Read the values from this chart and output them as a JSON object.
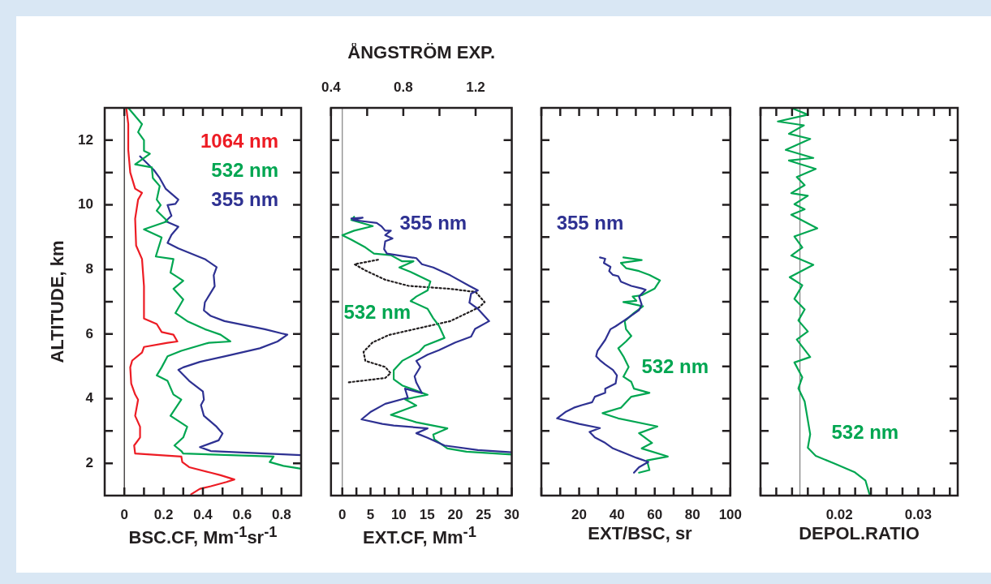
{
  "chart_data": [
    {
      "type": "line",
      "xlabel": "BSC.CF, Mm$^{-1}$sr$^{-1}$",
      "ylabel": "ALTITUDE, km",
      "xlim": [
        -0.1,
        0.9
      ],
      "ylim": [
        1,
        13
      ],
      "marker": "none",
      "legend": "top right",
      "xticks": [
        0,
        {
          "value": 0.1,
          "label": null
        },
        0.2,
        {
          "value": 0.3,
          "label": null
        },
        0.4,
        {
          "value": 0.5,
          "label": null
        },
        0.6,
        {
          "value": 0.7,
          "label": null
        },
        0.8
      ],
      "yticks": [
        2,
        {
          "value": 3,
          "label": null
        },
        4,
        {
          "value": 5,
          "label": null
        },
        6,
        {
          "value": 7,
          "label": null
        },
        8,
        {
          "value": 9,
          "label": null
        },
        10,
        {
          "value": 11,
          "label": null
        },
        12
      ],
      "ref_lines": [
        {
          "axis": "x",
          "value": 0,
          "color": "#231f20"
        }
      ],
      "series": [
        {
          "name": "1064 nm",
          "color": "#ed1c24",
          "x": [
            0.01,
            0.02,
            0.02,
            0.03,
            0.055,
            0.09,
            0.07,
            0.055,
            0.06,
            0.09,
            0.1,
            0.1,
            0.165,
            0.19,
            0.25,
            0.27,
            0.22,
            0.1,
            0.09,
            0.04,
            0.03,
            0.035,
            0.055,
            0.07,
            0.055,
            0.08,
            0.08,
            0.05,
            0.055,
            0.29,
            0.295,
            0.33,
            0.44,
            0.49,
            0.56,
            0.52,
            0.44,
            0.385,
            0.34
          ],
          "values": [
            13,
            12.5,
            11.7,
            11,
            10.5,
            10.37,
            10.16,
            9.57,
            8.74,
            8.32,
            7.48,
            6.48,
            6.31,
            6.06,
            5.98,
            5.77,
            5.73,
            5.6,
            5.43,
            5.18,
            4.97,
            4.47,
            4.13,
            3.97,
            3.47,
            3.13,
            2.8,
            2.55,
            2.3,
            2.21,
            2.04,
            1.88,
            1.71,
            1.63,
            1.5,
            1.42,
            1.29,
            1.21,
            1.04
          ]
        },
        {
          "name": "532 nm",
          "color": "#00a651",
          "x": [
            0.02,
            0.09,
            0.07,
            0.1,
            0.1,
            0.13,
            0.055,
            0.14,
            0.145,
            0.18,
            0.165,
            0.185,
            0.165,
            0.22,
            0.1,
            0.19,
            0.16,
            0.25,
            0.235,
            0.3,
            0.25,
            0.3,
            0.26,
            0.32,
            0.41,
            0.49,
            0.54,
            0.43,
            0.29,
            0.22,
            0.19,
            0.165,
            0.22,
            0.25,
            0.29,
            0.235,
            0.32,
            0.3,
            0.255,
            0.29,
            0.3,
            0.76,
            0.74,
            0.81,
            0.9
          ],
          "values": [
            13,
            12.5,
            12.25,
            12,
            11.67,
            11.58,
            11.25,
            11.16,
            10.83,
            10.58,
            10.16,
            9.99,
            9.82,
            9.49,
            9.24,
            8.99,
            8.4,
            8.32,
            7.9,
            7.65,
            7.4,
            7.07,
            6.65,
            6.4,
            6.15,
            5.98,
            5.77,
            5.73,
            5.48,
            5.31,
            4.97,
            4.72,
            4.55,
            4.13,
            3.97,
            3.47,
            3.13,
            2.8,
            2.55,
            2.38,
            2.3,
            2.21,
            2.04,
            1.92,
            1.83
          ]
        },
        {
          "name": "355 nm",
          "color": "#2e3192",
          "x": [
            0.08,
            0.15,
            0.18,
            0.21,
            0.275,
            0.26,
            0.22,
            0.24,
            0.21,
            0.275,
            0.24,
            0.22,
            0.275,
            0.41,
            0.47,
            0.455,
            0.46,
            0.41,
            0.405,
            0.44,
            0.51,
            0.715,
            0.8,
            0.83,
            0.78,
            0.69,
            0.51,
            0.385,
            0.3,
            0.275,
            0.33,
            0.4,
            0.405,
            0.39,
            0.405,
            0.47,
            0.5,
            0.48,
            0.385,
            0.44,
            0.9
          ],
          "values": [
            11.5,
            11.08,
            10.83,
            10.5,
            10.16,
            10.03,
            9.99,
            9.66,
            9.49,
            9.32,
            9.07,
            8.82,
            8.65,
            8.32,
            8.07,
            7.82,
            7.48,
            6.98,
            6.73,
            6.56,
            6.4,
            6.15,
            6.02,
            5.98,
            5.77,
            5.56,
            5.31,
            5.14,
            4.97,
            4.89,
            4.55,
            4.22,
            3.97,
            3.8,
            3.47,
            3.13,
            2.92,
            2.71,
            2.5,
            2.38,
            2.25
          ]
        }
      ]
    },
    {
      "type": "line",
      "xlabel": "EXT.CF, Mm$^{-1}$",
      "x2label": "ÅNGSTRÖM EXP.",
      "xlim": [
        -2,
        30
      ],
      "ylim": [
        1,
        13
      ],
      "x2lim": [
        0.4,
        1.4
      ],
      "marker": "none",
      "tick_labels": "x",
      "xticks": [
        0,
        {
          "value": 2.5,
          "label": null
        },
        5,
        {
          "value": 7.5,
          "label": null
        },
        10,
        {
          "value": 12.5,
          "label": null
        },
        15,
        {
          "value": 17.5,
          "label": null
        },
        20,
        {
          "value": 22.5,
          "label": null
        },
        25,
        {
          "value": 27.5,
          "label": null
        },
        30
      ],
      "x2ticks": [
        0.4,
        {
          "value": 0.6,
          "label": null
        },
        0.8,
        {
          "value": 1.0,
          "label": null
        },
        1.2
      ],
      "yticks": [
        2,
        3,
        4,
        5,
        6,
        7,
        8,
        9,
        10,
        11,
        12
      ],
      "ref_lines": [
        {
          "axis": "x",
          "value": 0,
          "color": "#808080"
        }
      ],
      "series": [
        {
          "name": "355 nm",
          "color": "#2e3192",
          "x": [
            1.6,
            3.6,
            1.9,
            6.1,
            6.9,
            7.6,
            8.6,
            7.6,
            8.9,
            7.6,
            7.4,
            7.9,
            13.1,
            14.1,
            16.1,
            19.1,
            22.5,
            24,
            22.8,
            22.5,
            24,
            26,
            23.5,
            22.8,
            20,
            17.1,
            15.1,
            13.1,
            13.8,
            12.8,
            13.1,
            14.1,
            11.1,
            11.6,
            7.6,
            5.1,
            3.4,
            7.1,
            9.1,
            15.1,
            13.1,
            15.1,
            18.1,
            24,
            30
          ],
          "values": [
            9.58,
            9.6,
            9.53,
            9.44,
            9.34,
            9.2,
            9.2,
            9.06,
            8.96,
            8.87,
            8.63,
            8.49,
            8.35,
            8.16,
            8.06,
            7.82,
            7.49,
            7.35,
            7.25,
            6.97,
            6.78,
            6.4,
            6.16,
            5.92,
            5.74,
            5.5,
            5.36,
            5.17,
            4.98,
            4.69,
            4.5,
            4.17,
            4.31,
            4.03,
            3.84,
            3.6,
            3.36,
            3.22,
            3.17,
            3.08,
            2.93,
            2.79,
            2.55,
            2.41,
            2.34
          ]
        },
        {
          "name": "532 nm",
          "color": "#00a651",
          "x": [
            2.1,
            1.6,
            5.4,
            2.1,
            0,
            1.6,
            4.1,
            5.6,
            8.6,
            10.6,
            12.6,
            10.1,
            12.1,
            15.6,
            15.1,
            13.1,
            12.1,
            15.1,
            16.1,
            17.1,
            17.6,
            18.1,
            14.6,
            13.6,
            10.6,
            9.1,
            9.1,
            10.6,
            15.1,
            11.1,
            13.1,
            8.6,
            13.1,
            18.6,
            16.1,
            16.3,
            18.6,
            22,
            30
          ],
          "values": [
            9.63,
            9.53,
            9.34,
            9.2,
            9.06,
            8.92,
            8.68,
            8.49,
            8.44,
            8.25,
            8.25,
            8.06,
            7.92,
            7.63,
            7.35,
            7.16,
            7.02,
            6.78,
            6.49,
            6.26,
            6.07,
            5.88,
            5.64,
            5.45,
            5.17,
            4.88,
            4.6,
            4.41,
            4.12,
            3.98,
            3.79,
            3.5,
            3.27,
            3.08,
            2.89,
            2.74,
            2.46,
            2.36,
            2.27
          ]
        },
        {
          "color": "#231f20",
          "axis": "x2",
          "line_style": "dotted",
          "x": [
            0.66,
            0.53,
            0.59,
            0.7,
            0.83,
            1.06,
            1.2,
            1.25,
            1.22,
            1.06,
            0.83,
            0.72,
            0.63,
            0.58,
            0.59,
            0.7,
            0.73,
            0.7,
            0.49
          ],
          "values": [
            8.3,
            8.16,
            7.97,
            7.68,
            7.49,
            7.4,
            7.3,
            6.99,
            6.83,
            6.4,
            6.11,
            5.97,
            5.74,
            5.45,
            5.17,
            4.98,
            4.79,
            4.64,
            4.5
          ]
        }
      ]
    },
    {
      "type": "line",
      "xlabel": "EXT/BSC, sr",
      "xlim": [
        0,
        100
      ],
      "ylim": [
        1,
        13
      ],
      "marker": "none",
      "tick_labels": "x",
      "xticks": [
        {
          "value": 0,
          "label": null
        },
        {
          "value": 10,
          "label": null
        },
        20,
        {
          "value": 30,
          "label": null
        },
        40,
        {
          "value": 50,
          "label": null
        },
        60,
        {
          "value": 70,
          "label": null
        },
        80,
        {
          "value": 90,
          "label": null
        },
        100
      ],
      "yticks": [
        2,
        3,
        4,
        5,
        6,
        7,
        8,
        9,
        10,
        11,
        12
      ],
      "series": [
        {
          "name": "355 nm",
          "color": "#2e3192",
          "x": [
            31,
            33.8,
            33.1,
            36.6,
            35.9,
            37.9,
            40.7,
            42.1,
            47.6,
            53.1,
            55.2,
            51.7,
            53.1,
            51.7,
            47.6,
            43.4,
            39.3,
            36.6,
            33.8,
            29.7,
            29,
            31,
            33.8,
            37.9,
            40,
            39.3,
            33.8,
            33.8,
            28.3,
            26.9,
            21.4,
            17.2,
            13.1,
            8.3,
            20,
            31,
            25.5,
            28.3,
            33.8,
            37.9,
            44.8,
            50.3,
            56.6,
            51.7,
            49
          ],
          "values": [
            8.37,
            8.33,
            8.2,
            8.08,
            7.95,
            7.83,
            7.79,
            7.62,
            7.49,
            7.41,
            7.37,
            7.16,
            6.91,
            6.74,
            6.57,
            6.4,
            6.24,
            6.15,
            5.82,
            5.48,
            5.31,
            5.19,
            5.06,
            4.89,
            4.72,
            4.47,
            4.31,
            4.18,
            4.06,
            3.89,
            3.8,
            3.72,
            3.6,
            3.39,
            3.22,
            3.09,
            2.97,
            2.8,
            2.63,
            2.46,
            2.3,
            2.17,
            2.04,
            1.88,
            1.71
          ]
        },
        {
          "name": "532 nm",
          "color": "#00a651",
          "x": [
            43.4,
            53.1,
            42.1,
            44.8,
            51.7,
            57.2,
            62.8,
            60,
            53.1,
            48.3,
            50.3,
            43.4,
            53.8,
            49,
            44.1,
            44.8,
            47.6,
            44.8,
            40.7,
            43.4,
            46.2,
            43.4,
            47.6,
            49,
            57.2,
            47.6,
            42.1,
            32.4,
            40.7,
            61.4,
            51.7,
            58.6,
            53.1,
            66.9,
            55.9,
            57.2,
            51.7
          ],
          "values": [
            8.37,
            8.29,
            8.2,
            8.04,
            7.95,
            7.83,
            7.66,
            7.41,
            7.2,
            7.16,
            7.03,
            6.99,
            6.86,
            6.65,
            6.4,
            6.15,
            5.94,
            5.77,
            5.56,
            5.31,
            4.98,
            4.68,
            4.52,
            4.31,
            4.18,
            4.06,
            3.72,
            3.55,
            3.39,
            3.14,
            2.93,
            2.63,
            2.46,
            2.21,
            2.09,
            1.79,
            1.71
          ]
        }
      ]
    },
    {
      "type": "line",
      "xlabel": "DEPOL.RATIO",
      "xlim": [
        0.01,
        0.035
      ],
      "ylim": [
        1,
        13
      ],
      "marker": "none",
      "tick_labels": "x",
      "xticks": [
        {
          "value": 0.01,
          "label": null
        },
        {
          "value": 0.012,
          "label": null
        },
        {
          "value": 0.014,
          "label": null
        },
        {
          "value": 0.016,
          "label": null
        },
        {
          "value": 0.018,
          "label": null
        },
        0.02,
        {
          "value": 0.022,
          "label": null
        },
        {
          "value": 0.024,
          "label": null
        },
        {
          "value": 0.026,
          "label": null
        },
        {
          "value": 0.028,
          "label": null
        },
        0.03,
        {
          "value": 0.032,
          "label": null
        },
        {
          "value": 0.034,
          "label": null
        }
      ],
      "yticks": [
        2,
        3,
        4,
        5,
        6,
        7,
        8,
        9,
        10,
        11,
        12
      ],
      "ref_lines": [
        {
          "axis": "x",
          "value": 0.015,
          "color": "#808080"
        }
      ],
      "series": [
        {
          "name": "532 nm",
          "color": "#00a651",
          "x": [
            0.0139,
            0.016,
            0.0122,
            0.0155,
            0.0136,
            0.0163,
            0.0132,
            0.0167,
            0.0136,
            0.017,
            0.0146,
            0.0156,
            0.0139,
            0.016,
            0.0143,
            0.0156,
            0.0139,
            0.0172,
            0.0143,
            0.0153,
            0.0139,
            0.0167,
            0.0137,
            0.0153,
            0.0143,
            0.0156,
            0.0148,
            0.016,
            0.0146,
            0.0163,
            0.0143,
            0.0153,
            0.0148,
            0.0156,
            0.0163,
            0.016,
            0.017,
            0.0195,
            0.0219,
            0.0233,
            0.0238
          ],
          "values": [
            13,
            12.79,
            12.58,
            12.46,
            12.2,
            12.04,
            11.7,
            11.45,
            11.37,
            11.11,
            10.86,
            10.61,
            10.36,
            10.28,
            10.02,
            9.86,
            9.69,
            9.27,
            9.02,
            8.68,
            8.43,
            8.14,
            7.76,
            7.51,
            7.09,
            6.76,
            6.42,
            6.08,
            5.83,
            5.29,
            5.12,
            4.66,
            4.32,
            3.91,
            2.9,
            2.48,
            2.23,
            1.98,
            1.73,
            1.47,
            1.05
          ]
        }
      ]
    }
  ]
}
